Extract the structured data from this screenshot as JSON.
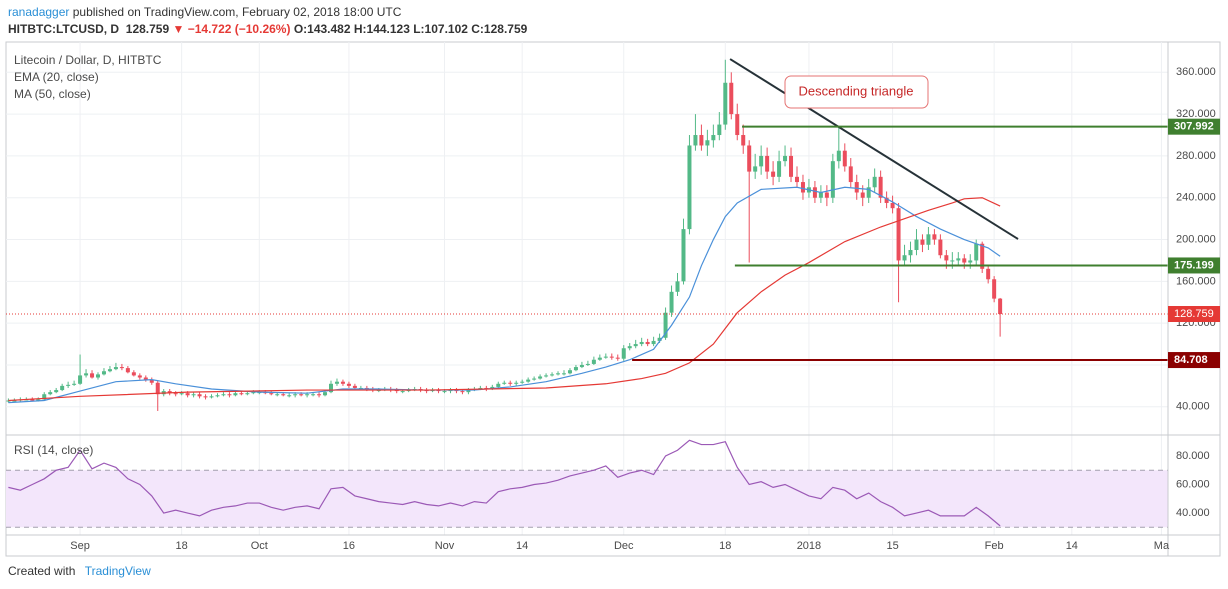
{
  "header": {
    "author": "ranadagger",
    "published": "published on TradingView.com, February 02, 2018 18:00 UTC",
    "symbol": "HITBTC:LTCUSD, D",
    "last": "128.759",
    "change": "▼ −14.722 (−10.26%)",
    "ohlc": "O:143.482 H:144.123 L:107.102 C:128.759"
  },
  "chart_data": [
    {
      "type": "candlestick",
      "title": "Litecoin / Dollar, D, HITBTC",
      "xlim": [
        -0.4,
        194.1
      ],
      "xticks": [
        {
          "value": 12,
          "label": "Sep"
        },
        {
          "value": 29,
          "label": "18"
        },
        {
          "value": 42,
          "label": "Oct"
        },
        {
          "value": 57,
          "label": "16"
        },
        {
          "value": 73,
          "label": "Nov"
        },
        {
          "value": 86,
          "label": "14"
        },
        {
          "value": 103,
          "label": "Dec"
        },
        {
          "value": 120,
          "label": "18"
        },
        {
          "value": 134,
          "label": "2018"
        },
        {
          "value": 148,
          "label": "15"
        },
        {
          "value": 165,
          "label": "Feb"
        },
        {
          "value": 178,
          "label": "14"
        },
        {
          "value": 193,
          "label": "Ma"
        }
      ],
      "ylim": [
        13,
        389
      ],
      "yticks": [
        {
          "value": 40,
          "label": "40.000"
        },
        {
          "value": 80,
          "label": "80.000"
        },
        {
          "value": 120,
          "label": "120.000"
        },
        {
          "value": 160,
          "label": "160.000"
        },
        {
          "value": 200,
          "label": "200.000"
        },
        {
          "value": 240,
          "label": "240.000"
        },
        {
          "value": 280,
          "label": "280.000"
        },
        {
          "value": 320,
          "label": "320.000"
        },
        {
          "value": 360,
          "label": "360.000"
        }
      ],
      "grid": true,
      "up_color": "#53b987",
      "down_color": "#eb4d5c",
      "open": [
        45,
        46,
        46,
        47,
        47,
        46,
        47,
        52,
        54,
        56,
        60,
        61,
        62,
        70,
        72,
        68,
        71,
        74,
        76,
        78,
        77,
        73,
        70,
        68,
        66,
        63,
        52,
        55,
        53,
        52,
        53,
        51,
        52,
        50,
        49,
        50,
        51,
        52,
        51,
        53,
        52,
        53,
        54,
        54,
        53,
        52,
        52,
        51,
        51,
        52,
        51,
        52,
        52,
        51,
        54,
        62,
        64,
        62,
        60,
        58,
        58,
        57,
        56,
        56,
        57,
        56,
        55,
        55,
        56,
        57,
        56,
        55,
        56,
        55,
        55,
        56,
        55,
        54,
        56,
        57,
        58,
        57,
        59,
        62,
        63,
        62,
        63,
        64,
        66,
        67,
        69,
        70,
        71,
        72,
        72,
        75,
        78,
        80,
        81,
        85,
        87,
        88,
        87,
        86,
        96,
        98,
        100,
        102,
        100,
        103,
        106,
        130,
        150,
        160,
        210,
        290,
        300,
        290,
        295,
        300,
        310,
        350,
        320,
        300,
        290,
        265,
        270,
        280,
        265,
        260,
        275,
        280,
        260,
        255,
        245,
        250,
        240,
        245,
        240,
        275,
        285,
        270,
        255,
        245,
        240,
        250,
        260,
        240,
        235,
        230,
        180,
        185,
        190,
        200,
        195,
        205,
        200,
        185,
        180,
        180,
        182,
        178,
        180,
        196,
        172,
        162,
        143.482
      ],
      "high": [
        48,
        48,
        49,
        49,
        49,
        49,
        54,
        56,
        58,
        62,
        64,
        65,
        90,
        76,
        75,
        73,
        77,
        79,
        82,
        81,
        79,
        75,
        72,
        70,
        68,
        65,
        57,
        57,
        55,
        55,
        55,
        54,
        54,
        52,
        52,
        53,
        54,
        54,
        55,
        55,
        55,
        56,
        56,
        56,
        55,
        54,
        54,
        53,
        54,
        54,
        54,
        54,
        54,
        56,
        65,
        67,
        66,
        64,
        62,
        60,
        60,
        59,
        58,
        59,
        59,
        58,
        57,
        58,
        59,
        59,
        58,
        58,
        58,
        57,
        58,
        58,
        57,
        58,
        59,
        60,
        60,
        61,
        64,
        65,
        65,
        65,
        66,
        68,
        69,
        71,
        72,
        73,
        74,
        75,
        77,
        80,
        83,
        84,
        88,
        90,
        91,
        91,
        90,
        99,
        101,
        104,
        106,
        105,
        107,
        110,
        135,
        156,
        168,
        220,
        300,
        320,
        310,
        305,
        310,
        322,
        372,
        360,
        330,
        310,
        295,
        282,
        290,
        288,
        275,
        285,
        290,
        288,
        270,
        262,
        258,
        256,
        252,
        252,
        282,
        307,
        292,
        278,
        262,
        252,
        258,
        268,
        266,
        246,
        242,
        235,
        195,
        198,
        210,
        205,
        212,
        210,
        205,
        190,
        188,
        188,
        186,
        186,
        200,
        198,
        175,
        165,
        144.123
      ],
      "low": [
        44,
        45,
        45,
        46,
        45,
        45,
        46,
        51,
        53,
        55,
        58,
        60,
        61,
        68,
        67,
        66,
        70,
        73,
        75,
        75,
        72,
        69,
        66,
        64,
        61,
        36,
        50,
        51,
        50,
        51,
        49,
        49,
        48,
        47,
        48,
        49,
        50,
        49,
        50,
        51,
        51,
        52,
        52,
        52,
        51,
        50,
        50,
        49,
        49,
        50,
        49,
        50,
        49,
        50,
        53,
        60,
        60,
        58,
        56,
        56,
        55,
        54,
        54,
        55,
        54,
        53,
        53,
        54,
        55,
        54,
        53,
        54,
        53,
        53,
        53,
        53,
        52,
        52,
        55,
        56,
        55,
        56,
        58,
        61,
        60,
        60,
        62,
        63,
        65,
        66,
        68,
        69,
        70,
        70,
        71,
        74,
        77,
        79,
        80,
        84,
        86,
        85,
        84,
        84,
        94,
        96,
        98,
        98,
        98,
        101,
        104,
        126,
        146,
        157,
        205,
        285,
        285,
        280,
        288,
        295,
        305,
        315,
        295,
        282,
        178,
        258,
        262,
        258,
        252,
        255,
        270,
        255,
        250,
        238,
        240,
        235,
        235,
        232,
        235,
        268,
        265,
        250,
        238,
        232,
        235,
        245,
        235,
        230,
        225,
        140,
        175,
        178,
        185,
        188,
        190,
        195,
        182,
        172,
        172,
        175,
        172,
        172,
        176,
        168,
        158,
        140,
        107.102
      ],
      "close": [
        46,
        46,
        47,
        47,
        46,
        47,
        52,
        54,
        56,
        60,
        61,
        62,
        70,
        72,
        68,
        71,
        74,
        76,
        78,
        77,
        73,
        70,
        68,
        66,
        63,
        52,
        55,
        53,
        52,
        53,
        51,
        52,
        50,
        49,
        50,
        51,
        52,
        51,
        53,
        52,
        53,
        54,
        54,
        53,
        52,
        52,
        51,
        51,
        52,
        51,
        52,
        52,
        51,
        54,
        62,
        64,
        62,
        60,
        58,
        58,
        57,
        56,
        56,
        57,
        56,
        55,
        55,
        56,
        57,
        56,
        55,
        56,
        55,
        55,
        56,
        55,
        54,
        56,
        57,
        58,
        57,
        59,
        62,
        63,
        62,
        63,
        64,
        66,
        67,
        69,
        70,
        71,
        72,
        72,
        75,
        78,
        80,
        81,
        85,
        87,
        88,
        87,
        86,
        96,
        98,
        100,
        102,
        100,
        103,
        106,
        130,
        150,
        160,
        210,
        290,
        300,
        290,
        295,
        300,
        310,
        350,
        320,
        300,
        290,
        265,
        270,
        280,
        265,
        260,
        275,
        280,
        260,
        255,
        245,
        250,
        240,
        245,
        240,
        275,
        285,
        270,
        255,
        245,
        240,
        250,
        260,
        240,
        235,
        230,
        180,
        185,
        190,
        200,
        195,
        205,
        200,
        185,
        180,
        180,
        182,
        178,
        180,
        196,
        172,
        162,
        143.482,
        128.759
      ],
      "series": [
        {
          "name": "EMA (20, close)",
          "color": "#4a90d9",
          "x": [
            0,
            6,
            12,
            18,
            24,
            28,
            34,
            42,
            50,
            56,
            62,
            70,
            78,
            84,
            90,
            96,
            100,
            104,
            108,
            111,
            114,
            116,
            118,
            120,
            122,
            126,
            132,
            136,
            140,
            144,
            148,
            152,
            156,
            160,
            164,
            166
          ],
          "values": [
            44,
            46,
            55,
            64,
            66,
            62,
            57,
            54,
            53,
            57,
            57,
            56,
            56,
            59,
            64,
            72,
            78,
            85,
            95,
            118,
            145,
            175,
            200,
            222,
            235,
            248,
            250,
            245,
            250,
            248,
            236,
            222,
            210,
            200,
            192,
            184
          ]
        },
        {
          "name": "MA (50, close)",
          "color": "#e53935",
          "x": [
            0,
            12,
            30,
            50,
            70,
            90,
            100,
            106,
            110,
            114,
            118,
            122,
            126,
            130,
            134,
            140,
            146,
            150,
            154,
            158,
            160,
            163,
            166
          ],
          "values": [
            46,
            50,
            54,
            56,
            56,
            58,
            62,
            67,
            72,
            82,
            100,
            130,
            150,
            166,
            178,
            198,
            212,
            220,
            228,
            235,
            239,
            240,
            232
          ]
        }
      ],
      "hlines": [
        {
          "value": 307.992,
          "color": "#3f7f2f",
          "x0": 122.8
        },
        {
          "value": 175.199,
          "color": "#3f7f2f",
          "x0": 121.6
        },
        {
          "value": 84.708,
          "color": "#8b0000",
          "x0": 104.4
        }
      ],
      "last_price": {
        "value": 128.759,
        "color": "#e53935"
      },
      "trendline": {
        "x": [
          120.8,
          169
        ],
        "y": [
          372.7,
          200.5
        ],
        "color": "#263238"
      },
      "annotation": "Descending triangle"
    },
    {
      "type": "line",
      "title": "RSI (14, close)",
      "color": "#9b59b6",
      "x": [
        0,
        2,
        4,
        6,
        8,
        10,
        12,
        14,
        16,
        18,
        20,
        22,
        24,
        26,
        28,
        30,
        32,
        34,
        36,
        38,
        40,
        42,
        44,
        46,
        48,
        50,
        52,
        54,
        56,
        58,
        60,
        62,
        64,
        66,
        68,
        70,
        72,
        74,
        76,
        78,
        80,
        82,
        84,
        86,
        88,
        90,
        92,
        94,
        96,
        98,
        100,
        102,
        104,
        106,
        108,
        110,
        112,
        114,
        116,
        118,
        120,
        122,
        124,
        126,
        128,
        130,
        132,
        134,
        136,
        138,
        140,
        142,
        144,
        146,
        148,
        150,
        152,
        154,
        156,
        158,
        160,
        162,
        164,
        166
      ],
      "values": [
        58,
        56,
        60,
        64,
        70,
        72,
        84,
        71,
        75,
        72,
        64,
        60,
        52,
        40,
        42,
        40,
        38,
        42,
        44,
        45,
        47,
        47,
        44,
        42,
        44,
        45,
        43,
        57,
        58,
        52,
        50,
        48,
        47,
        46,
        48,
        46,
        45,
        47,
        45,
        48,
        47,
        55,
        57,
        58,
        60,
        61,
        63,
        66,
        68,
        70,
        73,
        65,
        68,
        70,
        67,
        80,
        84,
        91,
        88,
        88,
        90,
        72,
        60,
        62,
        58,
        60,
        56,
        52,
        50,
        58,
        56,
        50,
        54,
        48,
        44,
        38,
        40,
        42,
        38,
        38,
        38,
        44,
        38,
        31
      ],
      "ylim": [
        24.6,
        94
      ],
      "yticks": [
        {
          "value": 40,
          "label": "40.000"
        },
        {
          "value": 60,
          "label": "60.000"
        },
        {
          "value": 80,
          "label": "80.000"
        }
      ],
      "band": [
        30,
        70
      ],
      "band_color": "#f3e6fb"
    }
  ],
  "footer": {
    "created": "Created with",
    "brand": "TradingView"
  }
}
